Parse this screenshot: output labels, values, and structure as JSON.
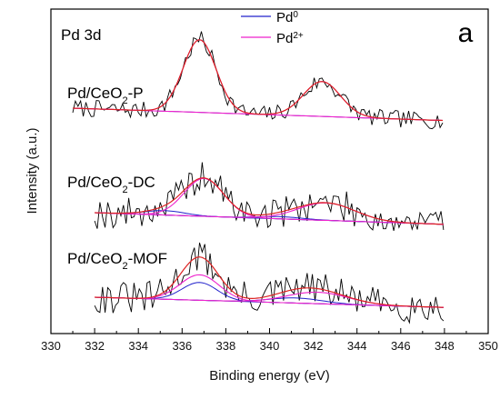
{
  "chart_data": {
    "type": "line",
    "xlabel": "Binding energy (eV)",
    "ylabel": "Intensity (a.u.)",
    "xlim": [
      330,
      350
    ],
    "x_ticks": [
      "330",
      "332",
      "334",
      "336",
      "338",
      "340",
      "342",
      "344",
      "346",
      "348",
      "350"
    ],
    "x_reversed": false,
    "legend": {
      "placement": "top-center",
      "entries": [
        {
          "label": "Pd",
          "sup": "0",
          "color": "#2222cc"
        },
        {
          "label": "Pd",
          "sup": "2+",
          "color": "#ee22cc"
        }
      ]
    },
    "annotations": {
      "element": "Pd 3d",
      "panel": "a"
    },
    "spectra": [
      {
        "name": "Pd/CeO",
        "sub": "2",
        "suffix": "-P",
        "x_start": 331,
        "x_end": 348,
        "baseline": 0,
        "pd2_peaks": [
          [
            336.8,
            1.0,
            0.75
          ],
          [
            342.4,
            0.48,
            0.85
          ]
        ],
        "pd0_peaks": [],
        "noise": 0.12,
        "seed": 7,
        "scale": 80
      },
      {
        "name": "Pd/CeO",
        "sub": "2",
        "suffix": "-DC",
        "x_start": 332,
        "x_end": 348,
        "baseline": 0,
        "pd2_peaks": [
          [
            337.0,
            0.52,
            0.9
          ],
          [
            342.6,
            0.24,
            1.3
          ]
        ],
        "pd0_peaks": [
          [
            335.2,
            0.06,
            0.9
          ],
          [
            340.5,
            0.03,
            1.0
          ]
        ],
        "noise": 0.22,
        "seed": 19,
        "scale": 80
      },
      {
        "name": "Pd/CeO",
        "sub": "2",
        "suffix": "-MOF",
        "x_start": 332,
        "x_end": 348,
        "baseline": 0,
        "pd2_peaks": [
          [
            336.8,
            0.4,
            0.9
          ],
          [
            342.2,
            0.18,
            1.4
          ]
        ],
        "pd0_peaks": [
          [
            336.8,
            0.28,
            0.8
          ],
          [
            341.2,
            0.08,
            1.2
          ]
        ],
        "noise": 0.26,
        "seed": 31,
        "scale": 70
      }
    ]
  }
}
